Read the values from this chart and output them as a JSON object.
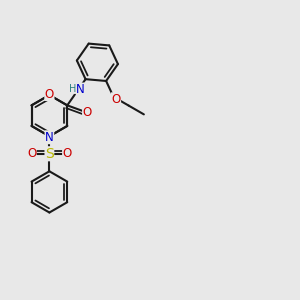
{
  "bg": "#e8e8e8",
  "bond_color": "#1a1a1a",
  "bw": 1.5,
  "atom_colors": {
    "O": "#cc0000",
    "N": "#0000cc",
    "S": "#b8b800",
    "H": "#2a8080",
    "C": "#1a1a1a"
  },
  "fs": 8.5,
  "BL": 0.42
}
